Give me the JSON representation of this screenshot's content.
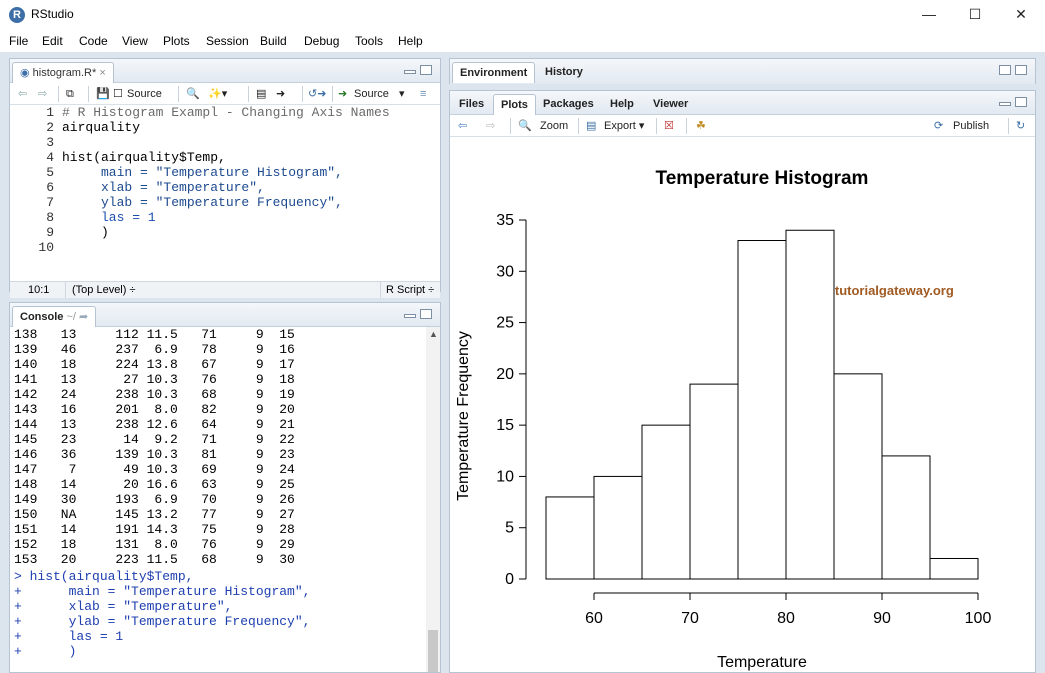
{
  "window": {
    "title": "RStudio",
    "logo": "R",
    "minimize_icon": "minimize-icon",
    "maximize_icon": "maximize-icon",
    "close_icon": "close-icon"
  },
  "menu": [
    "File",
    "Edit",
    "Code",
    "View",
    "Plots",
    "Session",
    "Build",
    "Debug",
    "Tools",
    "Help"
  ],
  "editor": {
    "tab": "histogram.R*",
    "toolbar": {
      "source_on_save": "Source",
      "run_source": "Source"
    },
    "lines": [
      "# R Histogram Exampl - Changing Axis Names",
      "airquality",
      "",
      "hist(airquality$Temp,",
      "     main = \"Temperature Histogram\",",
      "     xlab = \"Temperature\",",
      "     ylab = \"Temperature Frequency\",",
      "     las = 1",
      "     )",
      ""
    ],
    "line_numbers": [
      "1",
      "2",
      "3",
      "4",
      "5",
      "6",
      "7",
      "8",
      "9",
      "10"
    ],
    "status": {
      "position": "10:1",
      "scope": "(Top Level) ÷",
      "type": "R Script ÷"
    }
  },
  "console": {
    "title": "Console",
    "path": "~/",
    "rows": [
      "138   13     112 11.5   71     9  15",
      "139   46     237  6.9   78     9  16",
      "140   18     224 13.8   67     9  17",
      "141   13      27 10.3   76     9  18",
      "142   24     238 10.3   68     9  19",
      "143   16     201  8.0   82     9  20",
      "144   13     238 12.6   64     9  21",
      "145   23      14  9.2   71     9  22",
      "146   36     139 10.3   81     9  23",
      "147    7      49 10.3   69     9  24",
      "148   14      20 16.6   63     9  25",
      "149   30     193  6.9   70     9  26",
      "150   NA     145 13.2   77     9  27",
      "151   14     191 14.3   75     9  28",
      "152   18     131  8.0   76     9  29",
      "153   20     223 11.5   68     9  30"
    ],
    "commands": [
      "> hist(airquality$Temp,",
      "+      main = \"Temperature Histogram\",",
      "+      xlab = \"Temperature\",",
      "+      ylab = \"Temperature Frequency\",",
      "+      las = 1",
      "+      )"
    ]
  },
  "env_pane": {
    "tabs": [
      "Environment",
      "History"
    ]
  },
  "files_pane": {
    "tabs": [
      "Files",
      "Plots",
      "Packages",
      "Help",
      "Viewer"
    ],
    "active_tab": "Plots",
    "toolbar": {
      "zoom": "Zoom",
      "export": "Export ▾",
      "publish": "Publish"
    }
  },
  "watermark": "@tutorialgateway.org",
  "chart_data": {
    "type": "bar",
    "title": "Temperature Histogram",
    "xlabel": "Temperature",
    "ylabel": "Temperature Frequency",
    "bins": [
      [
        55,
        60
      ],
      [
        60,
        65
      ],
      [
        65,
        70
      ],
      [
        70,
        75
      ],
      [
        75,
        80
      ],
      [
        80,
        85
      ],
      [
        85,
        90
      ],
      [
        90,
        95
      ],
      [
        95,
        100
      ]
    ],
    "values": [
      8,
      10,
      15,
      19,
      33,
      34,
      20,
      12,
      2
    ],
    "xticks": [
      60,
      70,
      80,
      90,
      100
    ],
    "yticks": [
      0,
      5,
      10,
      15,
      20,
      25,
      30,
      35
    ],
    "xlim": [
      55,
      100
    ],
    "ylim": [
      0,
      35
    ],
    "grid": false
  }
}
